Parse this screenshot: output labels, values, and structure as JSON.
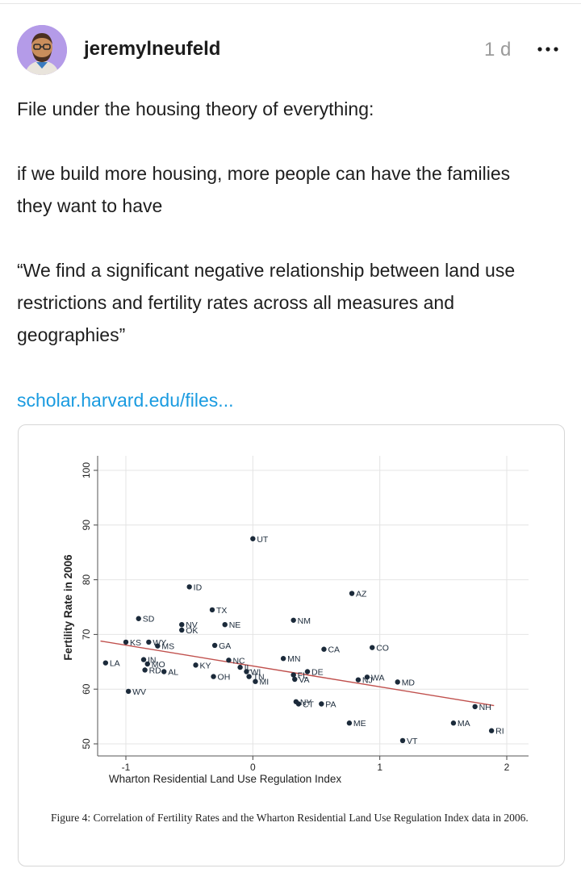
{
  "post": {
    "author": "jeremylneufeld",
    "age": "1 d",
    "paragraphs": [
      "File under the housing theory of everything:",
      "if we build more housing, more people can have the families they want to have",
      "“We find a significant negative relationship between land use restrictions and fertility rates across all measures and geographies”"
    ],
    "link_text": "scholar.harvard.edu/files...",
    "icons": {
      "avatar": "avatar",
      "more": "more-icon"
    }
  },
  "figure": {
    "caption": "Figure 4: Correlation of Fertility Rates and the Wharton Residential Land Use Regulation Index data in 2006."
  },
  "chart_data": {
    "type": "scatter",
    "title": "",
    "xlabel": "Wharton Residential Land Use Regulation Index",
    "ylabel": "Fertility Rate in 2006",
    "xlim": [
      -1.25,
      2.1
    ],
    "ylim": [
      48,
      103
    ],
    "xticks": [
      -1,
      0,
      1,
      2
    ],
    "yticks": [
      50,
      60,
      70,
      80,
      90,
      100
    ],
    "grid": true,
    "trendline": {
      "x": [
        -1.2,
        1.9
      ],
      "y": [
        68.8,
        57.0
      ],
      "color": "#c0504d"
    },
    "points": [
      {
        "label": "UT",
        "x": 0.0,
        "y": 87.5
      },
      {
        "label": "ID",
        "x": -0.5,
        "y": 78.7
      },
      {
        "label": "AZ",
        "x": 0.78,
        "y": 77.5
      },
      {
        "label": "TX",
        "x": -0.32,
        "y": 74.5
      },
      {
        "label": "SD",
        "x": -0.9,
        "y": 72.9
      },
      {
        "label": "NM",
        "x": 0.32,
        "y": 72.6
      },
      {
        "label": "NV",
        "x": -0.56,
        "y": 71.8
      },
      {
        "label": "OK",
        "x": -0.56,
        "y": 70.8
      },
      {
        "label": "NE",
        "x": -0.22,
        "y": 71.8
      },
      {
        "label": "KS",
        "x": -1.0,
        "y": 68.6
      },
      {
        "label": "WY",
        "x": -0.82,
        "y": 68.6
      },
      {
        "label": "MS",
        "x": -0.75,
        "y": 67.9
      },
      {
        "label": "GA",
        "x": -0.3,
        "y": 68.0
      },
      {
        "label": "CA",
        "x": 0.56,
        "y": 67.3
      },
      {
        "label": "CO",
        "x": 0.94,
        "y": 67.6
      },
      {
        "label": "LA",
        "x": -1.16,
        "y": 64.8
      },
      {
        "label": "IN",
        "x": -0.86,
        "y": 65.4
      },
      {
        "label": "MO",
        "x": -0.83,
        "y": 64.6
      },
      {
        "label": "RD",
        "x": -0.85,
        "y": 63.5
      },
      {
        "label": "AL",
        "x": -0.7,
        "y": 63.2
      },
      {
        "label": "KY",
        "x": -0.45,
        "y": 64.4
      },
      {
        "label": "NC",
        "x": -0.19,
        "y": 65.3
      },
      {
        "label": "MN",
        "x": 0.24,
        "y": 65.6
      },
      {
        "label": "OH",
        "x": -0.31,
        "y": 62.3
      },
      {
        "label": "IL",
        "x": -0.1,
        "y": 64.0
      },
      {
        "label": "WI",
        "x": -0.05,
        "y": 63.2
      },
      {
        "label": "TN",
        "x": -0.03,
        "y": 62.3
      },
      {
        "label": "MI",
        "x": 0.02,
        "y": 61.4
      },
      {
        "label": "DE",
        "x": 0.43,
        "y": 63.2
      },
      {
        "label": "FL",
        "x": 0.32,
        "y": 62.6
      },
      {
        "label": "VA",
        "x": 0.33,
        "y": 61.8
      },
      {
        "label": "WA",
        "x": 0.9,
        "y": 62.2
      },
      {
        "label": "NJ",
        "x": 0.83,
        "y": 61.7
      },
      {
        "label": "MD",
        "x": 1.14,
        "y": 61.3
      },
      {
        "label": "WV",
        "x": -0.98,
        "y": 59.6
      },
      {
        "label": "NY",
        "x": 0.34,
        "y": 57.7
      },
      {
        "label": "CT",
        "x": 0.36,
        "y": 57.3
      },
      {
        "label": "PA",
        "x": 0.54,
        "y": 57.3
      },
      {
        "label": "NH",
        "x": 1.75,
        "y": 56.8
      },
      {
        "label": "ME",
        "x": 0.76,
        "y": 53.8
      },
      {
        "label": "MA",
        "x": 1.58,
        "y": 53.8
      },
      {
        "label": "RI",
        "x": 1.88,
        "y": 52.4
      },
      {
        "label": "VT",
        "x": 1.18,
        "y": 50.6
      }
    ]
  }
}
